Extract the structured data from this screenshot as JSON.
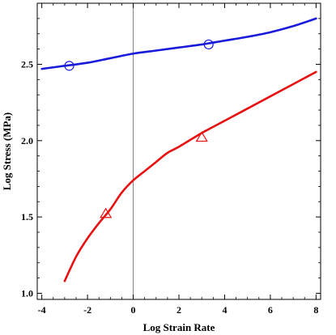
{
  "chart_data": {
    "type": "line",
    "title": "",
    "xlabel": "Log Strain Rate",
    "ylabel": "Log Stress (MPa)",
    "xlim": [
      -4.2,
      8.2
    ],
    "ylim": [
      0.96,
      2.9
    ],
    "x_ticks": [
      -4,
      -2,
      0,
      2,
      4,
      6,
      8
    ],
    "y_ticks": [
      1.0,
      1.5,
      2.0,
      2.5
    ],
    "x_tick_labels": [
      "-4",
      "-2",
      "0",
      "2",
      "4",
      "6",
      "8"
    ],
    "y_tick_labels": [
      "1.0",
      "1.5",
      "2.0",
      "2.5"
    ],
    "vertical_reference_x": 0,
    "grid": false,
    "legend": "none",
    "series": [
      {
        "color": "#1a1adb",
        "marker": "circle",
        "x": [
          -4,
          -3,
          -2,
          -1,
          0,
          1,
          2,
          3,
          4,
          5,
          6,
          7,
          8
        ],
        "y": [
          2.47,
          2.49,
          2.51,
          2.54,
          2.57,
          2.59,
          2.61,
          2.63,
          2.655,
          2.68,
          2.71,
          2.75,
          2.8
        ],
        "points": [
          {
            "x": -2.8,
            "y": 2.49
          },
          {
            "x": 3.3,
            "y": 2.63
          }
        ]
      },
      {
        "color": "#e81010",
        "marker": "triangle",
        "x": [
          -3,
          -2.5,
          -2,
          -1.5,
          -1,
          -0.5,
          0,
          0.5,
          1,
          1.5,
          2,
          3,
          4,
          5,
          6,
          7,
          8
        ],
        "y": [
          1.08,
          1.24,
          1.36,
          1.46,
          1.55,
          1.66,
          1.74,
          1.8,
          1.86,
          1.92,
          1.96,
          2.05,
          2.13,
          2.21,
          2.29,
          2.37,
          2.45
        ],
        "points": [
          {
            "x": -1.2,
            "y": 1.52
          },
          {
            "x": 3.0,
            "y": 2.02
          }
        ]
      }
    ]
  }
}
